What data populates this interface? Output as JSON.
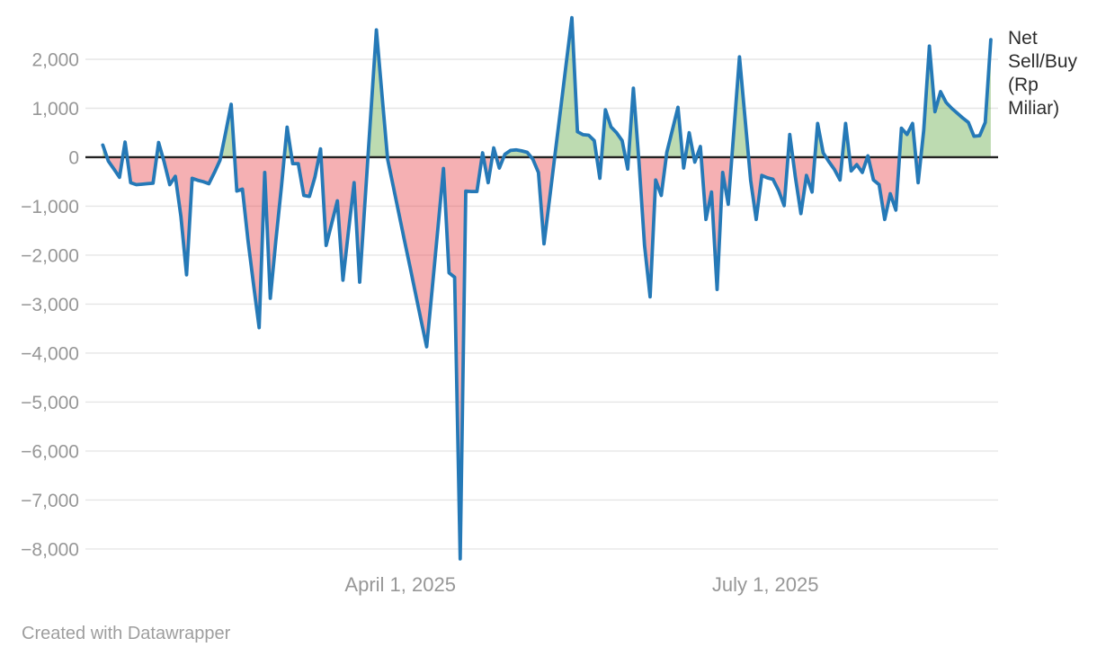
{
  "page": {
    "background": "#ffffff"
  },
  "legend": {
    "full_label": "Net Sell/Buy (Rp Miliar)",
    "label_lines": [
      "Net",
      "Sell/Buy",
      "(Rp",
      "Miliar)"
    ]
  },
  "footer": {
    "text": "Created with Datawrapper"
  },
  "chart_data": {
    "type": "line",
    "title": "",
    "xlabel": "",
    "ylabel": "",
    "series_label": "Net Sell/Buy (Rp Miliar)",
    "grid": true,
    "legend_position": "right",
    "ylim": [
      -8500,
      3000
    ],
    "y_ticks": [
      {
        "value": 2000,
        "label": "2,000"
      },
      {
        "value": 1000,
        "label": "1,000"
      },
      {
        "value": 0,
        "label": "0"
      },
      {
        "value": -1000,
        "label": "−1,000"
      },
      {
        "value": -2000,
        "label": "−2,000"
      },
      {
        "value": -3000,
        "label": "−3,000"
      },
      {
        "value": -4000,
        "label": "−4,000"
      },
      {
        "value": -5000,
        "label": "−5,000"
      },
      {
        "value": -6000,
        "label": "−6,000"
      },
      {
        "value": -7000,
        "label": "−7,000"
      },
      {
        "value": -8000,
        "label": "−8,000"
      }
    ],
    "x_ticks": [
      {
        "label": "April 1, 2025",
        "position": 0.345
      },
      {
        "label": "July 1, 2025",
        "position": 0.745
      }
    ],
    "line_start_fraction": 0.019,
    "line_end_fraction": 0.992,
    "values": [
      250,
      -80,
      -240,
      -410,
      310,
      -520,
      -560,
      -550,
      -540,
      -530,
      300,
      -100,
      -560,
      -390,
      -1210,
      -2400,
      -430,
      -470,
      -500,
      -540,
      -310,
      -60,
      500,
      1080,
      -690,
      -650,
      -1700,
      -2600,
      -3480,
      -310,
      -2880,
      -1700,
      -600,
      615,
      -130,
      -130,
      -780,
      -800,
      -400,
      170,
      -1800,
      -1350,
      -890,
      -2510,
      -1500,
      -520,
      -2550,
      -830,
      890,
      2600,
      1280,
      -40,
      -590,
      -1140,
      -1690,
      -2230,
      -2780,
      -3330,
      -3870,
      -2660,
      -1450,
      -230,
      -2360,
      -2450,
      -8200,
      -690,
      -700,
      -700,
      90,
      -520,
      190,
      -220,
      60,
      140,
      150,
      130,
      100,
      -40,
      -310,
      -1770,
      -850,
      80,
      1000,
      1930,
      2850,
      520,
      460,
      450,
      340,
      -430,
      970,
      620,
      500,
      340,
      -240,
      1410,
      -90,
      -1800,
      -2850,
      -465,
      -780,
      100,
      560,
      1020,
      -220,
      500,
      -100,
      220,
      -1270,
      -710,
      -2700,
      -310,
      -960,
      550,
      2050,
      790,
      -470,
      -1270,
      -370,
      -420,
      -450,
      -680,
      -990,
      465,
      -400,
      -1150,
      -370,
      -710,
      690,
      90,
      -90,
      -250,
      -465,
      690,
      -280,
      -150,
      -310,
      30,
      -465,
      -560,
      -1270,
      -745,
      -1080,
      595,
      465,
      690,
      -520,
      550,
      2270,
      930,
      1340,
      1120,
      1000,
      900,
      800,
      710,
      430,
      440,
      710,
      2400
    ],
    "colors": {
      "line": "#2579b7",
      "positive_fill_base": "#62a944",
      "negative_fill_base": "#e8434a",
      "fill_opacity": 0.42,
      "zero_line": "#222222",
      "gridline": "#e6e6e6",
      "axis_text": "#979797",
      "legend_text": "#2d2d2d",
      "footer_text": "#9e9e9e"
    }
  }
}
